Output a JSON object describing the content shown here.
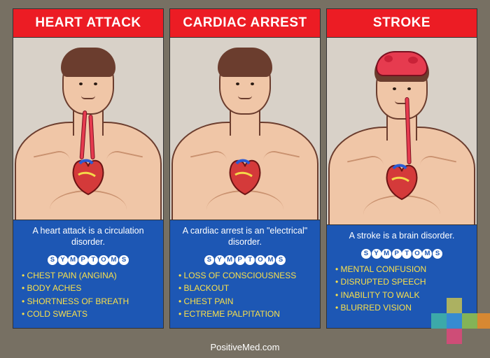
{
  "background_color": "#777063",
  "panel_background": "#d8d1c8",
  "header_color": "#ec1c24",
  "info_color": "#1d57b4",
  "symptom_text_color": "#f9e04b",
  "panels": [
    {
      "title": "HEART ATTACK",
      "description": "A heart attack is a circulation disorder.",
      "symptoms_label": "SYMPTOMS",
      "symptoms": [
        "CHEST PAIN (ANGINA)",
        "BODY ACHES",
        "SHORTNESS OF BREATH",
        "COLD SWEATS"
      ],
      "variant": "heart-attack"
    },
    {
      "title": "CARDIAC ARREST",
      "description": "A cardiac arrest is an \"electrical\" disorder.",
      "symptoms_label": "SYMPTOMS",
      "symptoms": [
        "LOSS OF CONSCIOUSNESS",
        "BLACKOUT",
        "CHEST PAIN",
        "ECTREME PALPITATION"
      ],
      "variant": "cardiac-arrest"
    },
    {
      "title": "STROKE",
      "description": "A stroke is a brain disorder.",
      "symptoms_label": "SYMPTOMS",
      "symptoms": [
        "MENTAL CONFUSION",
        "DISRUPTED SPEECH",
        "INABILITY TO WALK",
        "BLURRED VISION"
      ],
      "variant": "stroke"
    }
  ],
  "footer": "PositiveMed.com",
  "logo_colors": [
    "#b9b95a",
    "#8dbb4f",
    "#3a8fd4",
    "#e08a2e",
    "#3fb0a8",
    "#d64a78"
  ]
}
